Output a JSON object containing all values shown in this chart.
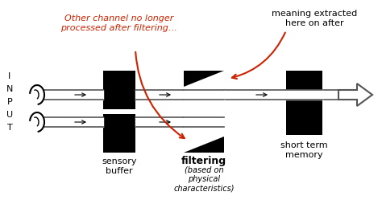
{
  "bg_color": "#ffffff",
  "black": "#000000",
  "red": "#cc2200",
  "dark_gray": "#555555",
  "text_color": "#000000",
  "input_label": [
    "I",
    "N",
    "P",
    "U",
    "T"
  ],
  "sensory_buffer_label": "sensory\nbuffer",
  "filtering_label": "filtering",
  "filtering_sub_label": "(based on\nphysical\ncharacteristics)",
  "short_term_memory_label": "short term\nmemory",
  "annotation1": "Other channel no longer\nprocessed after filtering…",
  "annotation2": "meaning extracted\nhere on after",
  "fig_w": 4.74,
  "fig_h": 2.54,
  "dpi": 100
}
